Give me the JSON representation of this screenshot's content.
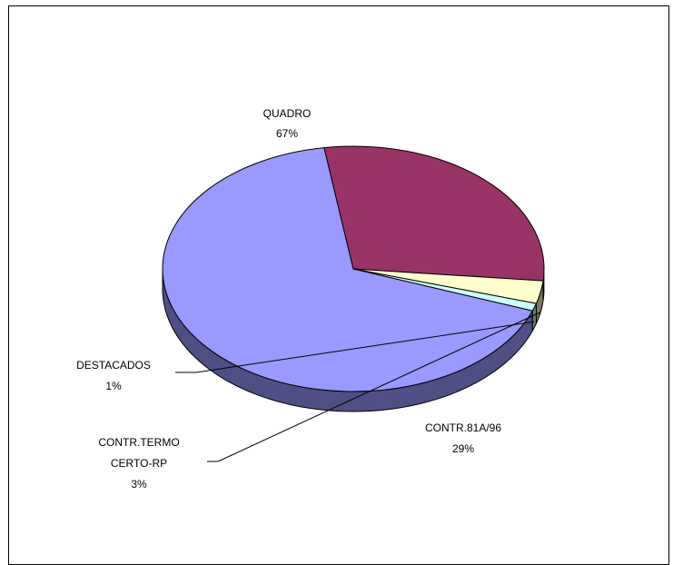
{
  "chart_data": {
    "type": "pie",
    "style": "3d",
    "slices": [
      {
        "label": "QUADRO",
        "value": 67,
        "display": "67%",
        "color": "#9999ff",
        "side_color": "#4f4f86"
      },
      {
        "label": "CONTR.81A/96",
        "value": 29,
        "display": "29%",
        "color": "#993366",
        "side_color": "#4c1a30"
      },
      {
        "label": "CONTR.TERMO CERTO-RP",
        "label_lines": [
          "CONTR.TERMO",
          "CERTO-RP"
        ],
        "value": 3,
        "display": "3%",
        "color": "#ffffcc",
        "side_color": "#7a7a5c"
      },
      {
        "label": "DESTACADOS",
        "value": 1,
        "display": "1%",
        "color": "#ccffff",
        "side_color": "#5f8080"
      }
    ]
  }
}
